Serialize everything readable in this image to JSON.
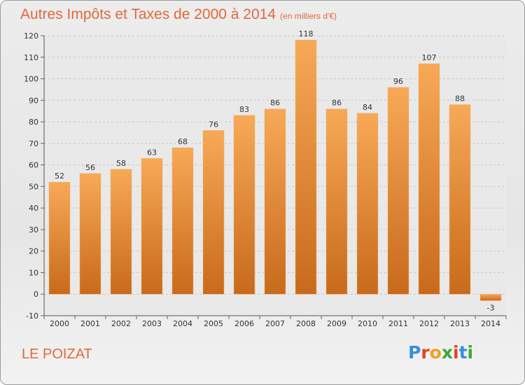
{
  "header": {
    "title": "Autres Impôts et Taxes de 2000 à 2014",
    "unit": "(en milliers d'€)"
  },
  "footer": {
    "commune": "LE POIZAT",
    "logo_text": "Proxiti"
  },
  "colors": {
    "bar_light": "#f7a957",
    "bar_dark": "#c86a1b",
    "title": "#e06a3a"
  },
  "chart_data": {
    "type": "bar",
    "title": "Autres Impôts et Taxes de 2000 à 2014",
    "subtitle": "(en milliers d'€)",
    "xlabel": "",
    "ylabel": "",
    "categories": [
      "2000",
      "2001",
      "2002",
      "2003",
      "2004",
      "2005",
      "2006",
      "2007",
      "2008",
      "2009",
      "2010",
      "2011",
      "2012",
      "2013",
      "2014"
    ],
    "values": [
      52,
      56,
      58,
      63,
      68,
      76,
      83,
      86,
      118,
      86,
      84,
      96,
      107,
      88,
      -3
    ],
    "ylim": [
      -10,
      120
    ],
    "yticks": [
      -10,
      0,
      10,
      20,
      30,
      40,
      50,
      60,
      70,
      80,
      90,
      100,
      110,
      120
    ],
    "grid": true,
    "data_labels": true
  }
}
